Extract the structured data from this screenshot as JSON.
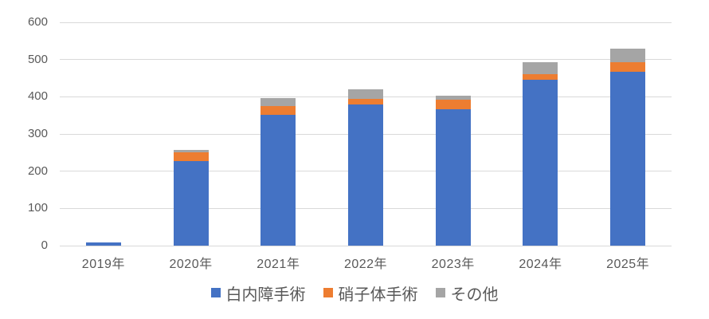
{
  "chart_data": {
    "type": "bar",
    "stacked": true,
    "title": "",
    "xlabel": "",
    "ylabel": "",
    "categories": [
      "2019年",
      "2020年",
      "2021年",
      "2022年",
      "2023年",
      "2024年",
      "2025年"
    ],
    "series": [
      {
        "key": "cataract-surgery",
        "name": "白内障手術",
        "color": "#4472C4",
        "values": [
          8,
          228,
          352,
          379,
          366,
          445,
          468
        ]
      },
      {
        "key": "vitrectomy",
        "name": "硝子体手術",
        "color": "#ED7D31",
        "values": [
          0,
          22,
          24,
          16,
          26,
          15,
          25
        ]
      },
      {
        "key": "other",
        "name": "その他",
        "color": "#A5A5A5",
        "values": [
          0,
          8,
          20,
          25,
          10,
          33,
          37
        ]
      }
    ],
    "ylim": [
      0,
      600
    ],
    "yticks": [
      0,
      100,
      200,
      300,
      400,
      500,
      600
    ],
    "grid": "horizontal",
    "legend_position": "bottom",
    "colors": {
      "grid": "#D9D9D9",
      "axis_text": "#595959",
      "legend_text": "#595959",
      "background": "#FFFFFF"
    }
  }
}
